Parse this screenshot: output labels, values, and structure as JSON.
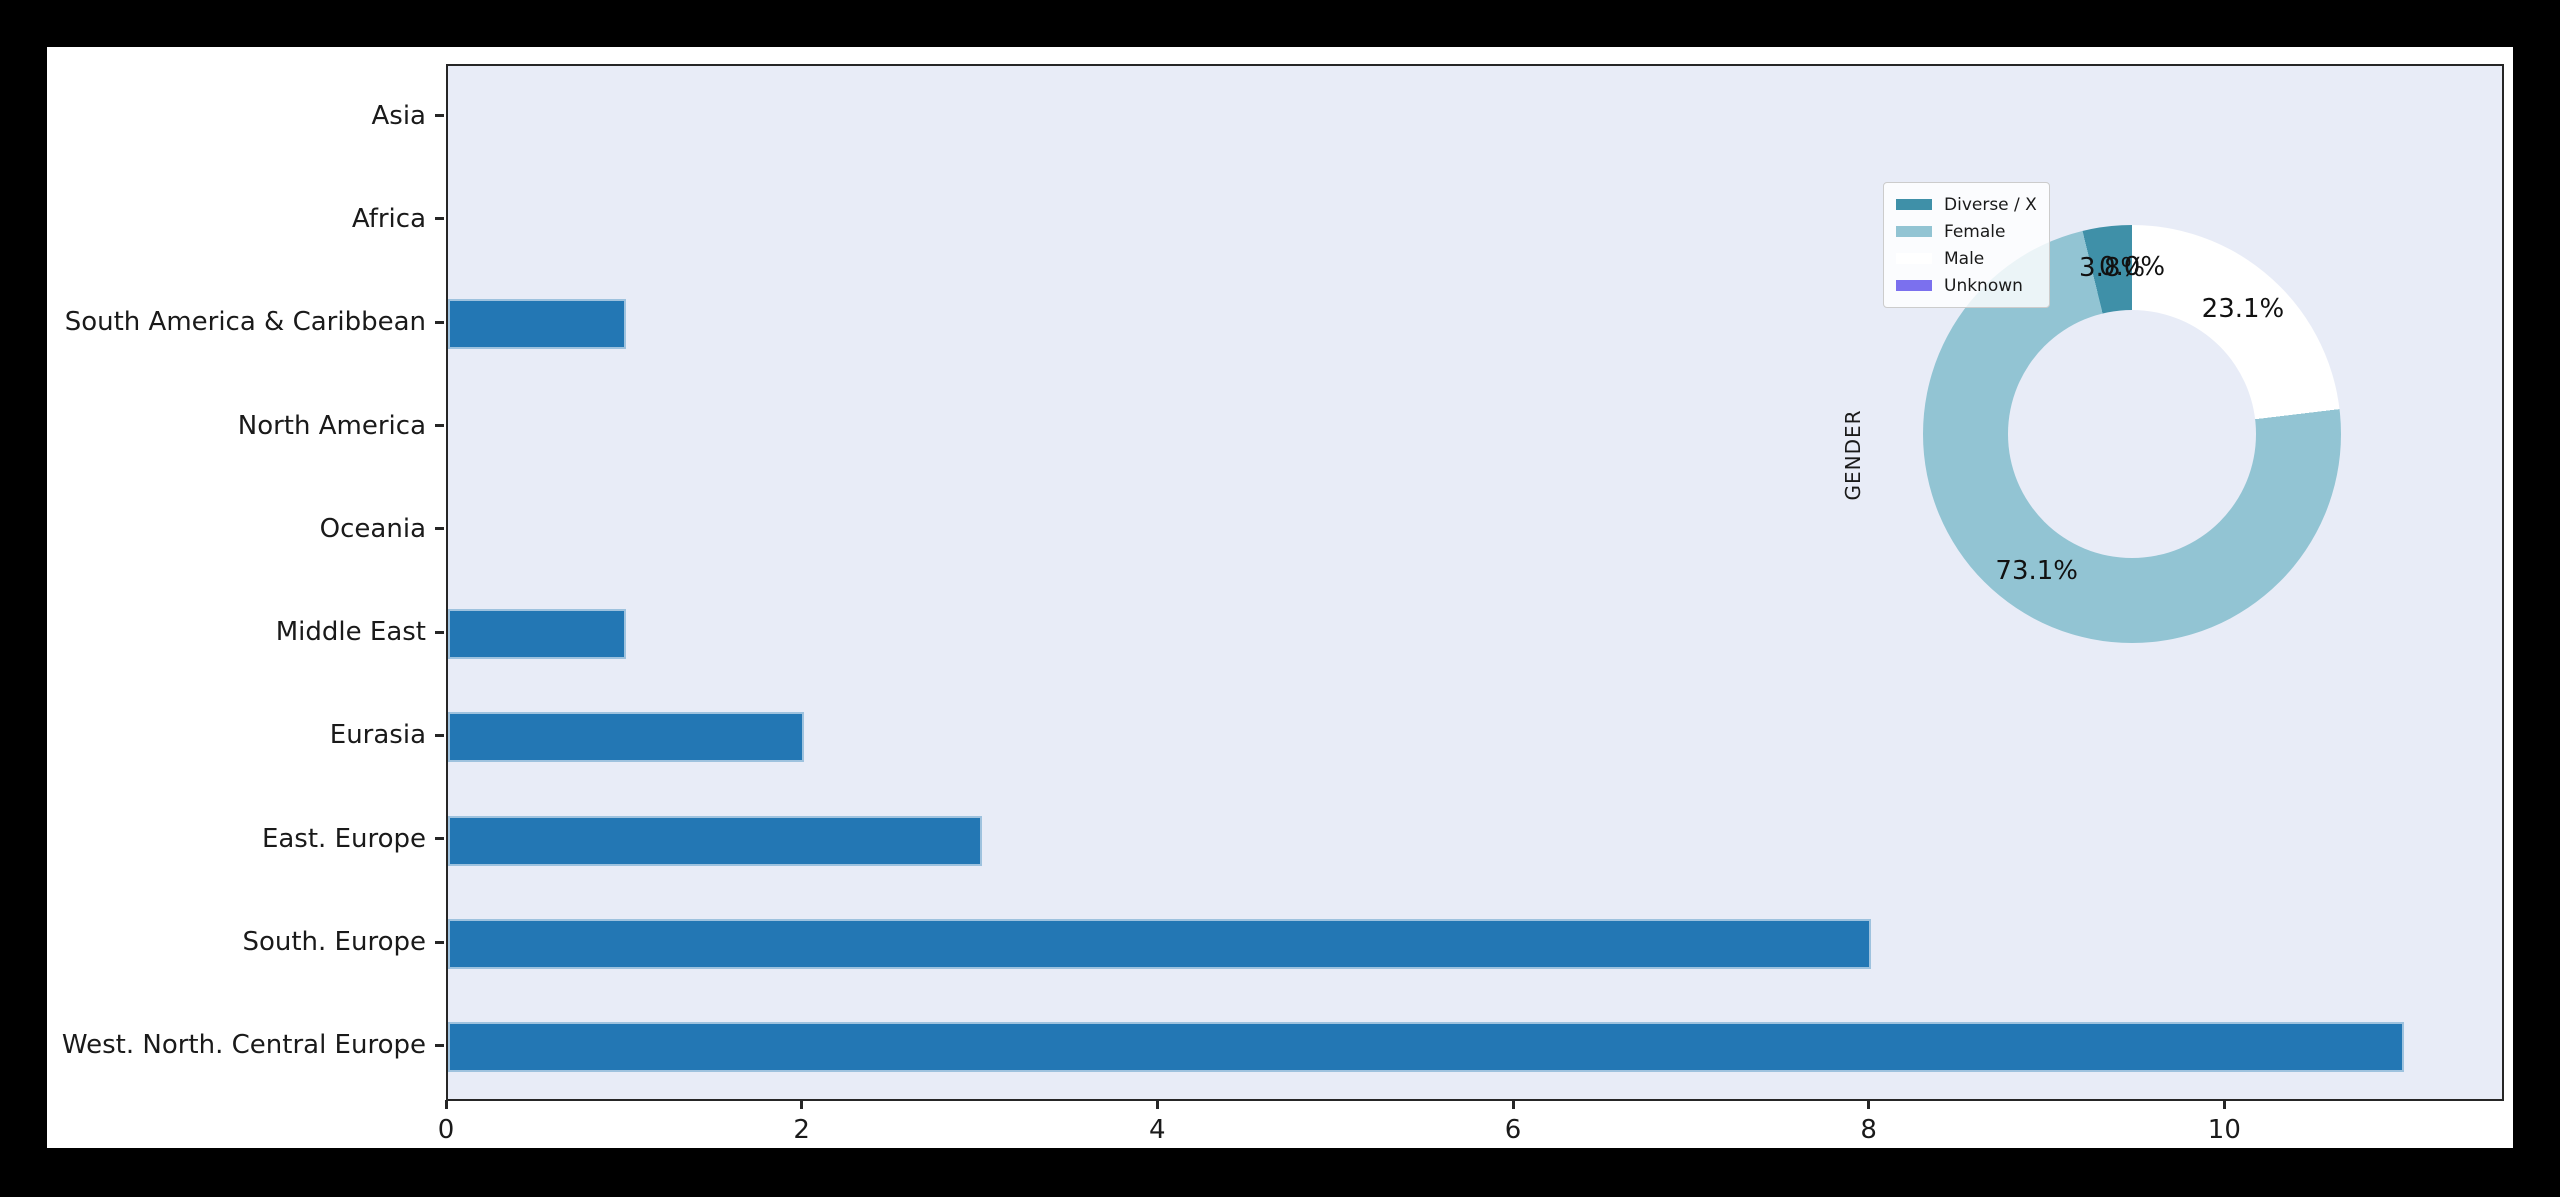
{
  "figure": {
    "outer_background": "#000000",
    "background": "#ffffff",
    "plot_background": "#e8ecf7",
    "spine_color": "#262626"
  },
  "chart_data": [
    {
      "type": "bar",
      "orientation": "horizontal",
      "title": "",
      "xlabel": "",
      "ylabel": "",
      "grid": false,
      "categories_top_to_bottom": [
        "Asia",
        "Africa",
        "South America & Caribbean",
        "North America",
        "Oceania",
        "Middle East",
        "Eurasia",
        "East. Europe",
        "South. Europe",
        "West. North. Central Europe"
      ],
      "values": [
        0,
        0,
        1,
        0,
        0,
        1,
        2,
        3,
        8,
        11
      ],
      "xticks": [
        "0",
        "2",
        "4",
        "6",
        "8",
        "10"
      ],
      "xtick_values": [
        0,
        2,
        4,
        6,
        8,
        10
      ],
      "xlim": [
        0,
        11.55
      ],
      "bar_color": "#2377b4",
      "bar_edge_color": "#9ec2de"
    },
    {
      "type": "pie",
      "ylabel": "GENDER",
      "labels": [
        "Diverse / X",
        "Female",
        "Male",
        "Unknown"
      ],
      "values_percent": [
        3.8,
        73.1,
        23.1,
        0.0
      ],
      "autopct_labels": [
        "3.8%",
        "73.1%",
        "23.1%",
        "0.0%"
      ],
      "colors": [
        "#3f90a8",
        "#92c4d3",
        "#ffffff",
        "#7b70ee"
      ],
      "start_angle": 90,
      "counterclockwise": true,
      "donut_hole_ratio": 0.593,
      "pct_distance": 0.8,
      "legend_position": "upper left"
    }
  ]
}
